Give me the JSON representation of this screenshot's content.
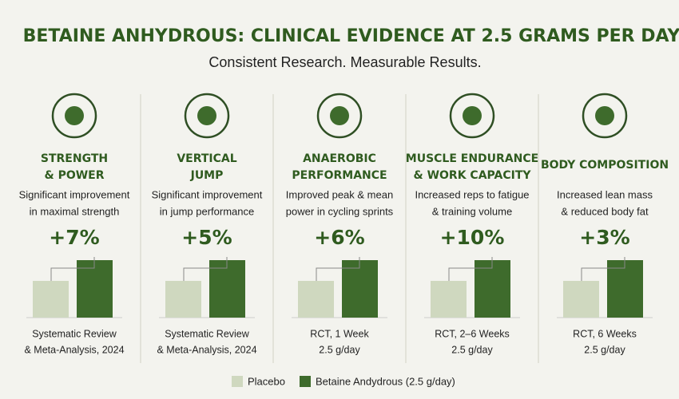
{
  "header": {
    "title": "BETAINE ANHYDROUS: CLINICAL EVIDENCE AT 2.5 GRAMS PER DAY",
    "subtitle": "Consistent Research. Measurable Results."
  },
  "panels": [
    {
      "title": [
        "STRENGTH",
        "& POWER"
      ],
      "description": [
        "Significant improvement",
        "in maximal strength"
      ],
      "effect": "+7%",
      "source": [
        "Systematic Review",
        "& Meta-Analysis, 2024"
      ]
    },
    {
      "title": [
        "VERTICAL",
        "JUMP"
      ],
      "description": [
        "Significant improvement",
        "in jump performance"
      ],
      "effect": "+5%",
      "source": [
        "Systematic Review",
        "& Meta-Analysis, 2024"
      ]
    },
    {
      "title": [
        "ANAEROBIC",
        "PERFORMANCE"
      ],
      "description": [
        "Improved peak & mean",
        "power in cycling sprints"
      ],
      "effect": "+6%",
      "source": [
        "RCT, 1 Week",
        "2.5 g/day"
      ]
    },
    {
      "title": [
        "MUSCLE ENDURANCE",
        "& WORK CAPACITY"
      ],
      "description": [
        "Increased reps to fatigue",
        "& training volume"
      ],
      "effect": "+10%",
      "source": [
        "RCT, 2–6 Weeks",
        "2.5 g/day"
      ]
    },
    {
      "title": [
        "BODY COMPOSITION"
      ],
      "description": [
        "Increased lean mass",
        "& reduced body fat"
      ],
      "effect": "+3%",
      "source": [
        "RCT, 6 Weeks",
        "2.5 g/day"
      ]
    }
  ],
  "legend": [
    "Placebo",
    "Betaine Andydrous (2.5 g/day)"
  ]
}
